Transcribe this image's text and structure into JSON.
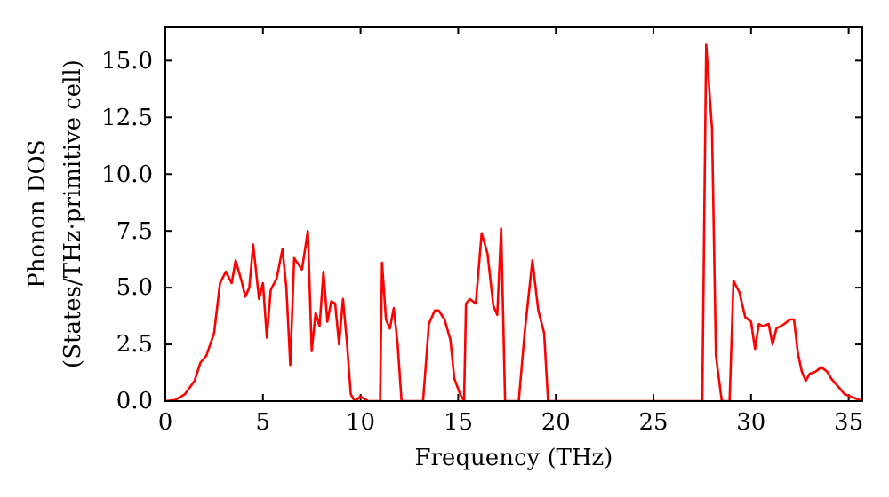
{
  "chart_data": {
    "type": "line",
    "xlabel": "Frequency (THz)",
    "ylabel": "Phonon DOS\n(States/THz·primitive cell)",
    "xlim": [
      0,
      35.7
    ],
    "ylim": [
      0,
      16.5
    ],
    "xticks": [
      0,
      5,
      10,
      15,
      20,
      25,
      30,
      35
    ],
    "yticks": [
      {
        "value": 0,
        "label": "0.0"
      },
      {
        "value": 2.5,
        "label": "2.5"
      },
      {
        "value": 5,
        "label": "5.0"
      },
      {
        "value": 7.5,
        "label": "7.5"
      },
      {
        "value": 10,
        "label": "10.0"
      },
      {
        "value": 12.5,
        "label": "12.5"
      },
      {
        "value": 15,
        "label": "15.0"
      }
    ],
    "grid": false,
    "marker": "none",
    "line_style": "solid",
    "series": [
      {
        "color": "#ff0000",
        "x": [
          0,
          0.5,
          1,
          1.5,
          1.8,
          2.1,
          2.5,
          2.8,
          3.1,
          3.4,
          3.6,
          3.9,
          4.1,
          4.3,
          4.5,
          4.8,
          5.0,
          5.2,
          5.4,
          5.7,
          6.0,
          6.2,
          6.4,
          6.6,
          7.0,
          7.3,
          7.5,
          7.7,
          7.9,
          8.1,
          8.3,
          8.5,
          8.7,
          8.9,
          9.1,
          9.3,
          9.5,
          9.7,
          10.0,
          10.4,
          11.0,
          11.1,
          11.3,
          11.5,
          11.7,
          11.9,
          12.1,
          13.2,
          13.5,
          13.8,
          14.0,
          14.3,
          14.6,
          14.8,
          15.1,
          15.3,
          15.4,
          15.6,
          15.9,
          16.2,
          16.5,
          16.8,
          17.0,
          17.2,
          17.4,
          18.1,
          18.4,
          18.8,
          19.1,
          19.4,
          19.6,
          27.5,
          27.7,
          28.0,
          28.2,
          28.5,
          28.9,
          29.1,
          29.4,
          29.7,
          30.0,
          30.2,
          30.4,
          30.6,
          30.9,
          31.1,
          31.3,
          31.7,
          32.0,
          32.2,
          32.4,
          32.6,
          32.8,
          33.0,
          33.3,
          33.6,
          33.9,
          34.1,
          34.5,
          34.8,
          35.7
        ],
        "values": [
          0,
          0.05,
          0.3,
          0.9,
          1.7,
          2.0,
          3.0,
          5.2,
          5.7,
          5.2,
          6.2,
          5.3,
          4.6,
          5.0,
          6.9,
          4.5,
          5.2,
          2.8,
          4.9,
          5.4,
          6.7,
          5.0,
          1.6,
          6.3,
          5.8,
          7.5,
          2.2,
          3.9,
          3.3,
          5.7,
          3.5,
          4.4,
          4.3,
          2.5,
          4.5,
          2.6,
          0.3,
          0,
          0.2,
          0,
          0,
          6.1,
          3.6,
          3.2,
          4.1,
          2.5,
          0,
          0,
          3.4,
          4.0,
          4.0,
          3.6,
          2.7,
          1.0,
          0.3,
          0,
          4.3,
          4.5,
          4.3,
          7.4,
          6.5,
          4.2,
          3.8,
          7.6,
          0,
          0,
          3.0,
          6.2,
          4.0,
          3.0,
          0,
          0,
          15.7,
          12.0,
          2.0,
          0,
          0,
          5.3,
          4.8,
          3.7,
          3.5,
          2.3,
          3.4,
          3.3,
          3.4,
          2.5,
          3.2,
          3.4,
          3.6,
          3.6,
          2.1,
          1.3,
          0.9,
          1.2,
          1.3,
          1.5,
          1.3,
          1.0,
          0.6,
          0.3,
          0
        ]
      }
    ]
  }
}
